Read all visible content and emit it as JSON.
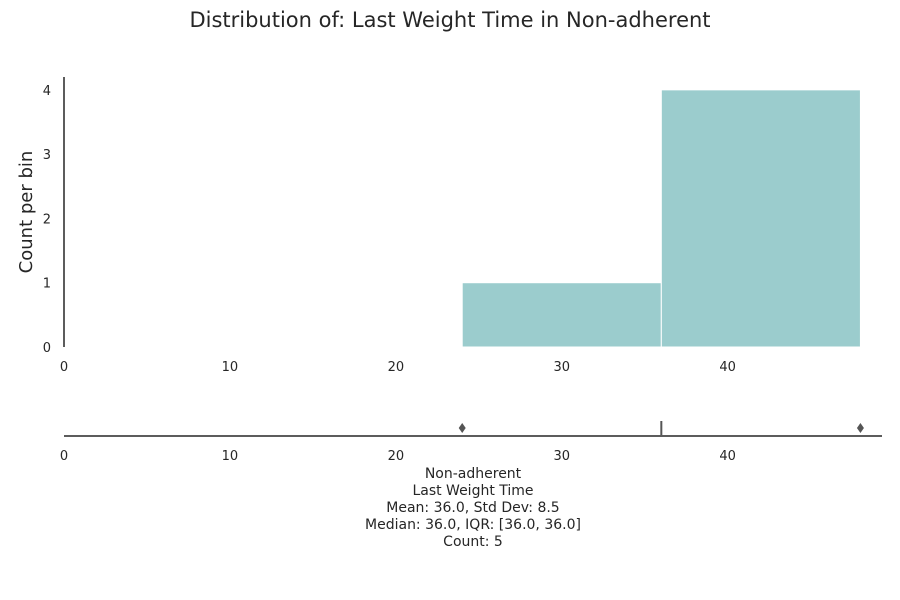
{
  "chart_data": {
    "type": "bar",
    "title": "Distribution of: Last Weight Time in Non-adherent",
    "ylabel": "Count per bin",
    "xlabel": "",
    "bins": [
      {
        "x0": 24,
        "x1": 36,
        "count": 1
      },
      {
        "x0": 36,
        "x1": 48,
        "count": 4
      }
    ],
    "xlim": [
      0,
      49.3
    ],
    "ylim": [
      0,
      4.2
    ],
    "xticks": [
      "0",
      "10",
      "20",
      "30",
      "40"
    ],
    "yticks": [
      "0",
      "1",
      "2",
      "3",
      "4"
    ],
    "grid": false,
    "bar_color": "#9bcccd",
    "boxplot": {
      "min": 36.0,
      "q1": 36.0,
      "median": 36.0,
      "q3": 36.0,
      "max": 36.0,
      "outliers": [
        24,
        48
      ],
      "xticks": [
        "0",
        "10",
        "20",
        "30",
        "40"
      ]
    }
  },
  "caption": {
    "group": "Non-adherent",
    "variable": "Last Weight Time",
    "mean_std": "Mean: 36.0, Std Dev: 8.5",
    "median_iqr": "Median: 36.0, IQR: [36.0, 36.0]",
    "count": "Count: 5"
  }
}
